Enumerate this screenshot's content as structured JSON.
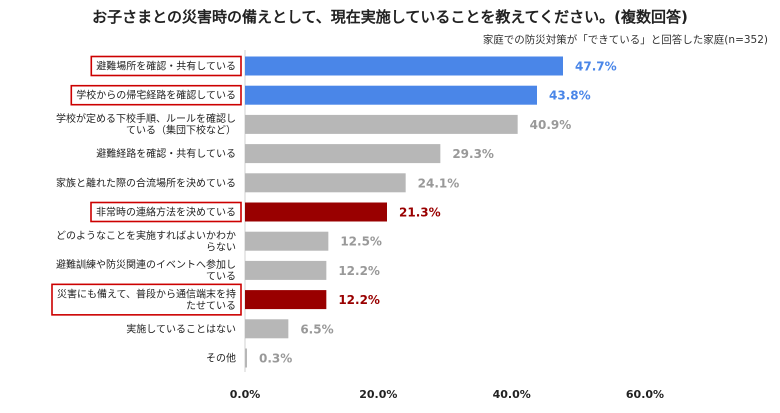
{
  "chart_data": {
    "type": "bar",
    "orientation": "horizontal",
    "title": "お子さまとの災害時の備えとして、現在実施していることを教えてください。(複数回答)",
    "subtitle": "家庭での防災対策が「できている」と回答した家庭(n=352)",
    "categories": [
      [
        "避難場所を確認・共有している"
      ],
      [
        "学校からの帰宅経路を確認している"
      ],
      [
        "学校が定める下校手順、ルールを確認し",
        "ている（集団下校など）"
      ],
      [
        "避難経路を確認・共有している"
      ],
      [
        "家族と離れた際の合流場所を決めている"
      ],
      [
        "非常時の連絡方法を決めている"
      ],
      [
        "どのようなことを実施すればよいかわか",
        "らない"
      ],
      [
        "避難訓練や防災関連のイベントへ参加し",
        "ている"
      ],
      [
        "災害にも備えて、普段から通信端末を持",
        "たせている"
      ],
      [
        "実施していることはない"
      ],
      [
        "その他"
      ]
    ],
    "values": [
      47.7,
      43.8,
      40.9,
      29.3,
      24.1,
      21.3,
      12.5,
      12.2,
      12.2,
      6.5,
      0.3
    ],
    "value_labels": [
      "47.7%",
      "43.8%",
      "40.9%",
      "29.3%",
      "24.1%",
      "21.3%",
      "12.5%",
      "12.2%",
      "12.2%",
      "6.5%",
      "0.3%"
    ],
    "highlight": [
      "blue",
      "blue",
      "gray",
      "gray",
      "gray",
      "red",
      "gray",
      "gray",
      "red",
      "gray",
      "gray"
    ],
    "boxed": [
      true,
      true,
      false,
      false,
      false,
      true,
      false,
      false,
      true,
      false,
      false
    ],
    "xlim": [
      0,
      60
    ],
    "xticks": [
      "0.0%",
      "20.0%",
      "40.0%",
      "60.0%"
    ],
    "colors": {
      "blue": "#4a86e8",
      "red": "#990000",
      "gray": "#b7b7b7",
      "blue_label": "#4a86e8",
      "red_label": "#990000",
      "gray_label": "#999999",
      "box": "#cc0000"
    }
  }
}
